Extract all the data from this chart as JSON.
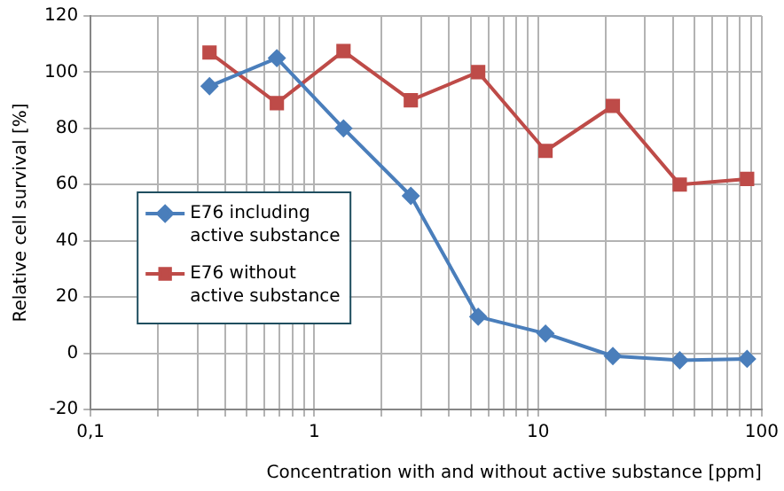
{
  "chart_data": {
    "type": "line",
    "xlabel": "Concentration with and without active substance [ppm]",
    "ylabel": "Relative cell survival [%]",
    "x": [
      0.34,
      0.68,
      1.35,
      2.7,
      5.4,
      10.8,
      21.6,
      43,
      86
    ],
    "series": [
      {
        "name": "E76 including active substance",
        "color": "#4a7ebb",
        "marker": "diamond",
        "values": [
          95,
          105,
          80,
          56,
          13,
          7,
          -1,
          -2.5,
          -2
        ]
      },
      {
        "name": "E76 without active substance",
        "color": "#be4b48",
        "marker": "square",
        "values": [
          107,
          89,
          107.5,
          90,
          100,
          72,
          88,
          60,
          62
        ]
      }
    ],
    "log": "x",
    "xlim": [
      0.1,
      100
    ],
    "xticks": [
      {
        "value": 0.1,
        "label": "0,1"
      },
      {
        "value": 0.2,
        "label": null
      },
      {
        "value": 0.3,
        "label": null
      },
      {
        "value": 0.4,
        "label": null
      },
      {
        "value": 0.5,
        "label": null
      },
      {
        "value": 0.6,
        "label": null
      },
      {
        "value": 0.7,
        "label": null
      },
      {
        "value": 0.8,
        "label": null
      },
      {
        "value": 0.9,
        "label": null
      },
      1,
      {
        "value": 2,
        "label": null
      },
      {
        "value": 3,
        "label": null
      },
      {
        "value": 4,
        "label": null
      },
      {
        "value": 5,
        "label": null
      },
      {
        "value": 6,
        "label": null
      },
      {
        "value": 7,
        "label": null
      },
      {
        "value": 8,
        "label": null
      },
      {
        "value": 9,
        "label": null
      },
      10,
      {
        "value": 20,
        "label": null
      },
      {
        "value": 30,
        "label": null
      },
      {
        "value": 40,
        "label": null
      },
      {
        "value": 50,
        "label": null
      },
      {
        "value": 60,
        "label": null
      },
      {
        "value": 70,
        "label": null
      },
      {
        "value": 80,
        "label": null
      },
      {
        "value": 90,
        "label": null
      },
      100
    ],
    "ylim": [
      -20,
      120
    ],
    "yticks": [
      -20,
      0,
      20,
      40,
      60,
      80,
      100,
      120
    ],
    "grid": true,
    "legend": "left",
    "line_style": "solid"
  }
}
